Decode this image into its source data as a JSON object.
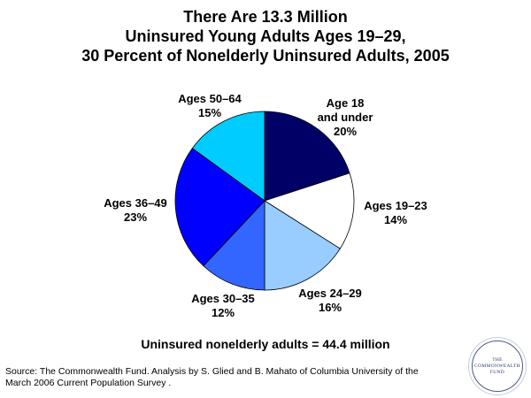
{
  "chart_data": {
    "type": "pie",
    "title_lines": [
      "There Are 13.3 Million",
      "Uninsured Young Adults Ages 19–29,",
      "30 Percent of Nonelderly Uninsured Adults, 2005"
    ],
    "slices": [
      {
        "label_lines": [
          "Age 18",
          "and under"
        ],
        "pct_label": "20%",
        "value": 20,
        "color": "#000066"
      },
      {
        "label_lines": [
          "Ages 19–23"
        ],
        "pct_label": "14%",
        "value": 14,
        "color": "#ffffff"
      },
      {
        "label_lines": [
          "Ages 24–29"
        ],
        "pct_label": "16%",
        "value": 16,
        "color": "#99ccff"
      },
      {
        "label_lines": [
          "Ages 30–35"
        ],
        "pct_label": "12%",
        "value": 12,
        "color": "#3366ff"
      },
      {
        "label_lines": [
          "Ages 36–49"
        ],
        "pct_label": "23%",
        "value": 23,
        "color": "#0000ff"
      },
      {
        "label_lines": [
          "Ages 50–64"
        ],
        "pct_label": "15%",
        "value": 15,
        "color": "#00ccff"
      }
    ]
  },
  "note": "Uninsured nonelderly adults = 44.4 million",
  "source_lines": [
    "Source: The Commonwealth Fund. Analysis by S. Glied and B. Mahato of Columbia University of the",
    "March 2006 Current Population Survey ."
  ],
  "logo": {
    "text": "THE\nCOMMONWEALTH\nFUND"
  }
}
